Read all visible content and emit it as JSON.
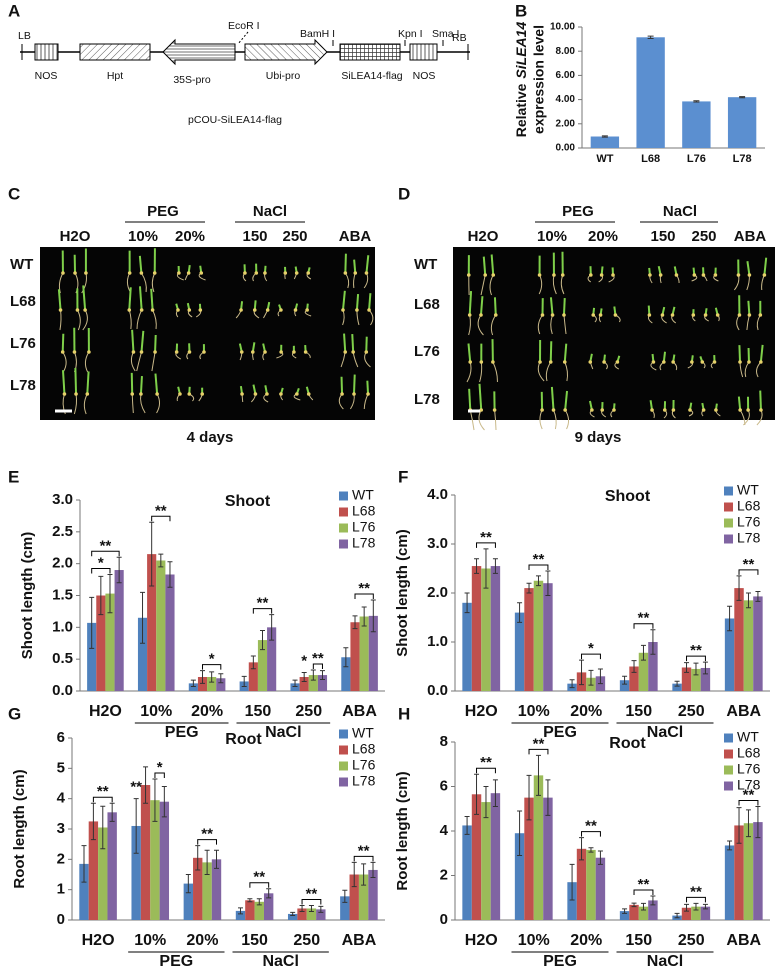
{
  "construct": {
    "panel": "A",
    "ends": [
      "LB",
      "RB"
    ],
    "sites": [
      "EcoR I",
      "BamH I",
      "Kpn I",
      "Sma I"
    ],
    "segments": [
      "NOS",
      "Hpt",
      "35S-pro",
      "Ubi-pro",
      "SiLEA14-flag",
      "NOS"
    ],
    "name": "pCOU-SiLEA14-flag"
  },
  "photos": [
    {
      "panel": "C",
      "columns": [
        "H2O",
        "10%",
        "20%",
        "150",
        "250",
        "ABA"
      ],
      "groups": [
        "PEG",
        "NaCl"
      ],
      "rows": [
        "WT",
        "L68",
        "L76",
        "L78"
      ],
      "caption": "4 days"
    },
    {
      "panel": "D",
      "columns": [
        "H2O",
        "10%",
        "20%",
        "150",
        "250",
        "ABA"
      ],
      "groups": [
        "PEG",
        "NaCl"
      ],
      "rows": [
        "WT",
        "L68",
        "L76",
        "L78"
      ],
      "caption": "9 days"
    }
  ],
  "chart_data": [
    {
      "panel": "B",
      "type": "bar",
      "y_label": [
        "Relative",
        "SiLEA14",
        "expression level"
      ],
      "categories": [
        "WT",
        "L68",
        "L76",
        "L78"
      ],
      "values": [
        0.95,
        9.15,
        3.85,
        4.2
      ],
      "errors": [
        0.05,
        0.1,
        0.05,
        0.05
      ],
      "color": "#5b8fd0",
      "ylim": [
        0,
        10
      ],
      "yticks": [
        {
          "value": 0,
          "label": "0.00"
        },
        {
          "value": 2,
          "label": "2.00"
        },
        {
          "value": 4,
          "label": "4.00"
        },
        {
          "value": 6,
          "label": "6.00"
        },
        {
          "value": 8,
          "label": "8.00"
        },
        {
          "value": 10,
          "label": "10.00"
        }
      ]
    },
    {
      "panel": "E",
      "type": "grouped_bar",
      "title": "Shoot",
      "y_label": "Shoot length (cm)",
      "categories": [
        "H2O",
        "10%",
        "20%",
        "150",
        "250",
        "ABA"
      ],
      "groups": [
        "PEG",
        "NaCl"
      ],
      "legend": "top-right",
      "series": [
        {
          "name": "WT",
          "color": "#4f81bd",
          "values": [
            1.07,
            1.15,
            0.12,
            0.15,
            0.12,
            0.53
          ],
          "errors": [
            0.4,
            0.4,
            0.05,
            0.08,
            0.05,
            0.15
          ]
        },
        {
          "name": "L68",
          "color": "#c0504d",
          "values": [
            1.5,
            2.15,
            0.22,
            0.45,
            0.22,
            1.08
          ],
          "errors": [
            0.3,
            0.5,
            0.1,
            0.1,
            0.07,
            0.1
          ]
        },
        {
          "name": "L76",
          "color": "#9bbb59",
          "values": [
            1.53,
            2.05,
            0.22,
            0.8,
            0.25,
            1.17
          ],
          "errors": [
            0.3,
            0.1,
            0.08,
            0.15,
            0.08,
            0.15
          ]
        },
        {
          "name": "L78",
          "color": "#8064a2",
          "values": [
            1.9,
            1.83,
            0.2,
            1.0,
            0.25,
            1.18
          ],
          "errors": [
            0.2,
            0.2,
            0.07,
            0.2,
            0.07,
            0.25
          ]
        }
      ],
      "ylim": [
        0,
        3
      ],
      "yticks": [
        {
          "value": 0,
          "label": "0.0"
        },
        0.5,
        {
          "value": 1,
          "label": "1.0"
        },
        1.5,
        {
          "value": 2,
          "label": "2.0"
        },
        2.5,
        {
          "value": 3,
          "label": "3.0"
        }
      ],
      "annotations": [
        {
          "label": "*",
          "category": "H2O",
          "from": "WT",
          "to": "L76"
        },
        {
          "label": "**",
          "category": "H2O",
          "from": "WT",
          "to": "L78"
        },
        {
          "label": "**",
          "category": "10%",
          "from": "L68",
          "to": "L78"
        },
        {
          "label": "*",
          "category": "20%",
          "from": "L68",
          "to": "L78"
        },
        {
          "label": "**",
          "category": "150",
          "from": "L68",
          "to": "L78"
        },
        {
          "label": "*",
          "category": "250",
          "from": "L68",
          "to": "L68"
        },
        {
          "label": "**",
          "category": "250",
          "from": "L76",
          "to": "L78"
        },
        {
          "label": "**",
          "category": "ABA",
          "from": "L68",
          "to": "L78"
        }
      ]
    },
    {
      "panel": "F",
      "type": "grouped_bar",
      "title": "Shoot",
      "y_label": "Shoot length (cm)",
      "categories": [
        "H2O",
        "10%",
        "20%",
        "150",
        "250",
        "ABA"
      ],
      "groups": [
        "PEG",
        "NaCl"
      ],
      "legend": "top-right",
      "series": [
        {
          "name": "WT",
          "color": "#4f81bd",
          "values": [
            1.8,
            1.6,
            0.15,
            0.22,
            0.15,
            1.48
          ],
          "errors": [
            0.2,
            0.2,
            0.08,
            0.08,
            0.05,
            0.25
          ]
        },
        {
          "name": "L68",
          "color": "#c0504d",
          "values": [
            2.55,
            2.1,
            0.38,
            0.5,
            0.48,
            2.1
          ],
          "errors": [
            0.15,
            0.1,
            0.25,
            0.12,
            0.1,
            0.25
          ]
        },
        {
          "name": "L76",
          "color": "#9bbb59",
          "values": [
            2.5,
            2.25,
            0.27,
            0.78,
            0.45,
            1.85
          ],
          "errors": [
            0.4,
            0.1,
            0.15,
            0.15,
            0.12,
            0.15
          ]
        },
        {
          "name": "L78",
          "color": "#8064a2",
          "values": [
            2.55,
            2.2,
            0.3,
            1.0,
            0.47,
            1.93
          ],
          "errors": [
            0.15,
            0.25,
            0.15,
            0.25,
            0.12,
            0.1
          ]
        }
      ],
      "ylim": [
        0,
        4
      ],
      "yticks": [
        {
          "value": 0,
          "label": "0.0"
        },
        {
          "value": 1,
          "label": "1.0"
        },
        {
          "value": 2,
          "label": "2.0"
        },
        {
          "value": 3,
          "label": "3.0"
        },
        {
          "value": 4,
          "label": "4.0"
        }
      ],
      "annotations": [
        {
          "label": "**",
          "category": "H2O",
          "from": "L68",
          "to": "L78"
        },
        {
          "label": "**",
          "category": "10%",
          "from": "L68",
          "to": "L78"
        },
        {
          "label": "*",
          "category": "20%",
          "from": "L68",
          "to": "L78"
        },
        {
          "label": "**",
          "category": "150",
          "from": "L68",
          "to": "L78"
        },
        {
          "label": "**",
          "category": "250",
          "from": "L68",
          "to": "L78"
        },
        {
          "label": "**",
          "category": "ABA",
          "from": "L68",
          "to": "L78"
        }
      ]
    },
    {
      "panel": "G",
      "type": "grouped_bar",
      "title": "Root",
      "y_label": "Root length (cm)",
      "categories": [
        "H2O",
        "10%",
        "20%",
        "150",
        "250",
        "ABA"
      ],
      "groups": [
        "PEG",
        "NaCl"
      ],
      "legend": "top-right",
      "series": [
        {
          "name": "WT",
          "color": "#4f81bd",
          "values": [
            1.85,
            3.1,
            1.2,
            0.3,
            0.2,
            0.78
          ],
          "errors": [
            0.6,
            0.9,
            0.3,
            0.1,
            0.05,
            0.2
          ]
        },
        {
          "name": "L68",
          "color": "#c0504d",
          "values": [
            3.25,
            4.45,
            2.05,
            0.65,
            0.38,
            1.5
          ],
          "errors": [
            0.6,
            0.6,
            0.4,
            0.05,
            0.1,
            0.4
          ]
        },
        {
          "name": "L76",
          "color": "#9bbb59",
          "values": [
            3.05,
            3.95,
            1.9,
            0.6,
            0.38,
            1.5
          ],
          "errors": [
            0.7,
            0.7,
            0.4,
            0.1,
            0.1,
            0.35
          ]
        },
        {
          "name": "L78",
          "color": "#8064a2",
          "values": [
            3.55,
            3.9,
            2.0,
            0.88,
            0.35,
            1.65
          ],
          "errors": [
            0.3,
            0.5,
            0.3,
            0.15,
            0.1,
            0.25
          ]
        }
      ],
      "ylim": [
        0,
        6
      ],
      "yticks": [
        0,
        1,
        2,
        3,
        4,
        5,
        6
      ],
      "annotations": [
        {
          "label": "**",
          "category": "H2O",
          "from": "L68",
          "to": "L78"
        },
        {
          "label": "**",
          "category": "10%",
          "from": "WT",
          "to": "WT"
        },
        {
          "label": "*",
          "category": "10%",
          "from": "L76",
          "to": "L78"
        },
        {
          "label": "**",
          "category": "20%",
          "from": "L68",
          "to": "L78"
        },
        {
          "label": "**",
          "category": "150",
          "from": "L68",
          "to": "L78"
        },
        {
          "label": "**",
          "category": "250",
          "from": "L68",
          "to": "L78"
        },
        {
          "label": "**",
          "category": "ABA",
          "from": "L68",
          "to": "L78"
        }
      ]
    },
    {
      "panel": "H",
      "type": "grouped_bar",
      "title": "Root",
      "y_label": "Root length (cm)",
      "categories": [
        "H2O",
        "10%",
        "20%",
        "150",
        "250",
        "ABA"
      ],
      "groups": [
        "PEG",
        "NaCl"
      ],
      "legend": "top-right",
      "series": [
        {
          "name": "WT",
          "color": "#4f81bd",
          "values": [
            4.25,
            3.9,
            1.7,
            0.4,
            0.2,
            3.35
          ],
          "errors": [
            0.4,
            1.0,
            0.8,
            0.1,
            0.1,
            0.2
          ]
        },
        {
          "name": "L68",
          "color": "#c0504d",
          "values": [
            5.65,
            5.5,
            3.2,
            0.68,
            0.55,
            4.25
          ],
          "errors": [
            0.9,
            1.0,
            0.5,
            0.08,
            0.15,
            0.8
          ]
        },
        {
          "name": "L76",
          "color": "#9bbb59",
          "values": [
            5.3,
            6.5,
            3.15,
            0.6,
            0.6,
            4.35
          ],
          "errors": [
            0.7,
            0.9,
            0.1,
            0.15,
            0.15,
            0.6
          ]
        },
        {
          "name": "L78",
          "color": "#8064a2",
          "values": [
            5.7,
            5.5,
            2.8,
            0.88,
            0.6,
            4.4
          ],
          "errors": [
            0.6,
            0.8,
            0.3,
            0.2,
            0.1,
            0.7
          ]
        }
      ],
      "ylim": [
        0,
        8
      ],
      "yticks": [
        0,
        2,
        4,
        6,
        8
      ],
      "annotations": [
        {
          "label": "**",
          "category": "H2O",
          "from": "L68",
          "to": "L78"
        },
        {
          "label": "**",
          "category": "10%",
          "from": "L68",
          "to": "L78"
        },
        {
          "label": "**",
          "category": "20%",
          "from": "L68",
          "to": "L78"
        },
        {
          "label": "**",
          "category": "150",
          "from": "L68",
          "to": "L78"
        },
        {
          "label": "**",
          "category": "250",
          "from": "L68",
          "to": "L78"
        },
        {
          "label": "**",
          "category": "ABA",
          "from": "L68",
          "to": "L78"
        }
      ]
    }
  ]
}
